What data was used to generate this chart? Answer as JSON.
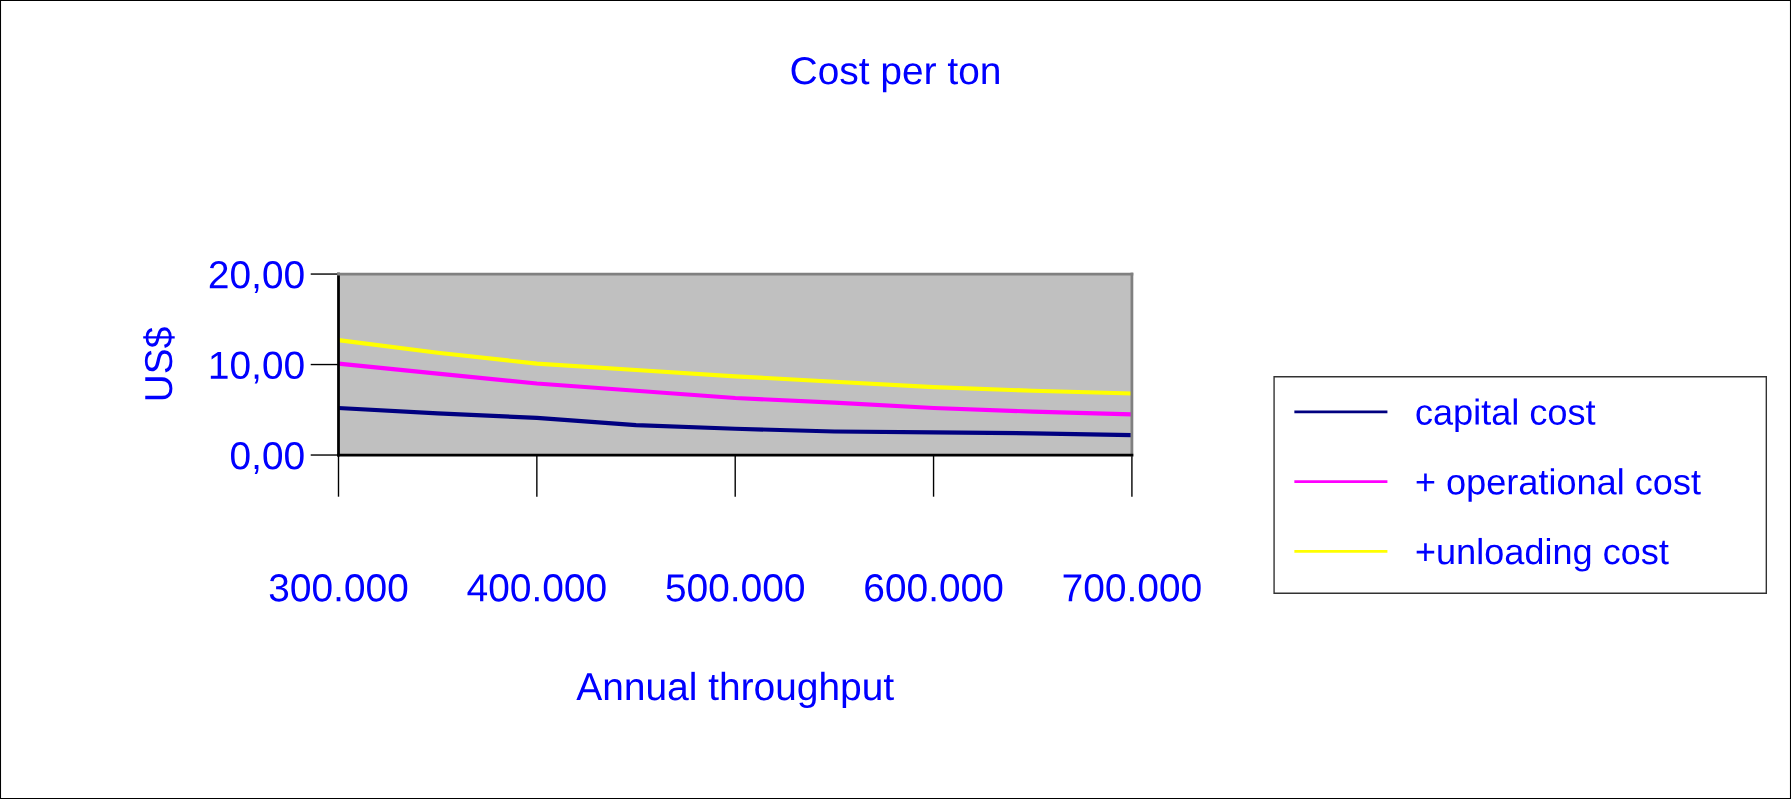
{
  "chart_data": {
    "type": "line",
    "title": "Cost per ton",
    "xlabel": "Annual throughput",
    "ylabel": "US$",
    "x": [
      300000,
      350000,
      400000,
      450000,
      500000,
      550000,
      600000,
      650000,
      700000
    ],
    "series": [
      {
        "name": "capital cost",
        "color": "#000080",
        "values": [
          5.2,
          4.6,
          4.1,
          3.3,
          2.9,
          2.6,
          2.5,
          2.4,
          2.2
        ]
      },
      {
        "name": "+ operational cost",
        "color": "#ff00ff",
        "values": [
          10.1,
          9.0,
          7.9,
          7.1,
          6.3,
          5.8,
          5.2,
          4.8,
          4.5
        ]
      },
      {
        "name": "+unloading cost",
        "color": "#ffff00",
        "values": [
          12.7,
          11.3,
          10.1,
          9.4,
          8.7,
          8.1,
          7.5,
          7.1,
          6.8
        ]
      }
    ],
    "xlim": [
      300000,
      700000
    ],
    "xticks": [
      {
        "value": 300000,
        "label": "300.000"
      },
      {
        "value": 400000,
        "label": "400.000"
      },
      {
        "value": 500000,
        "label": "500.000"
      },
      {
        "value": 600000,
        "label": "600.000"
      },
      {
        "value": 700000,
        "label": "700.000"
      }
    ],
    "ylim": [
      0,
      20
    ],
    "yticks": [
      {
        "value": 0,
        "label": "0,00"
      },
      {
        "value": 10,
        "label": "10,00"
      },
      {
        "value": 20,
        "label": "20,00"
      }
    ],
    "grid": false,
    "legend": "right",
    "marker": "none",
    "line_style": "solid"
  }
}
